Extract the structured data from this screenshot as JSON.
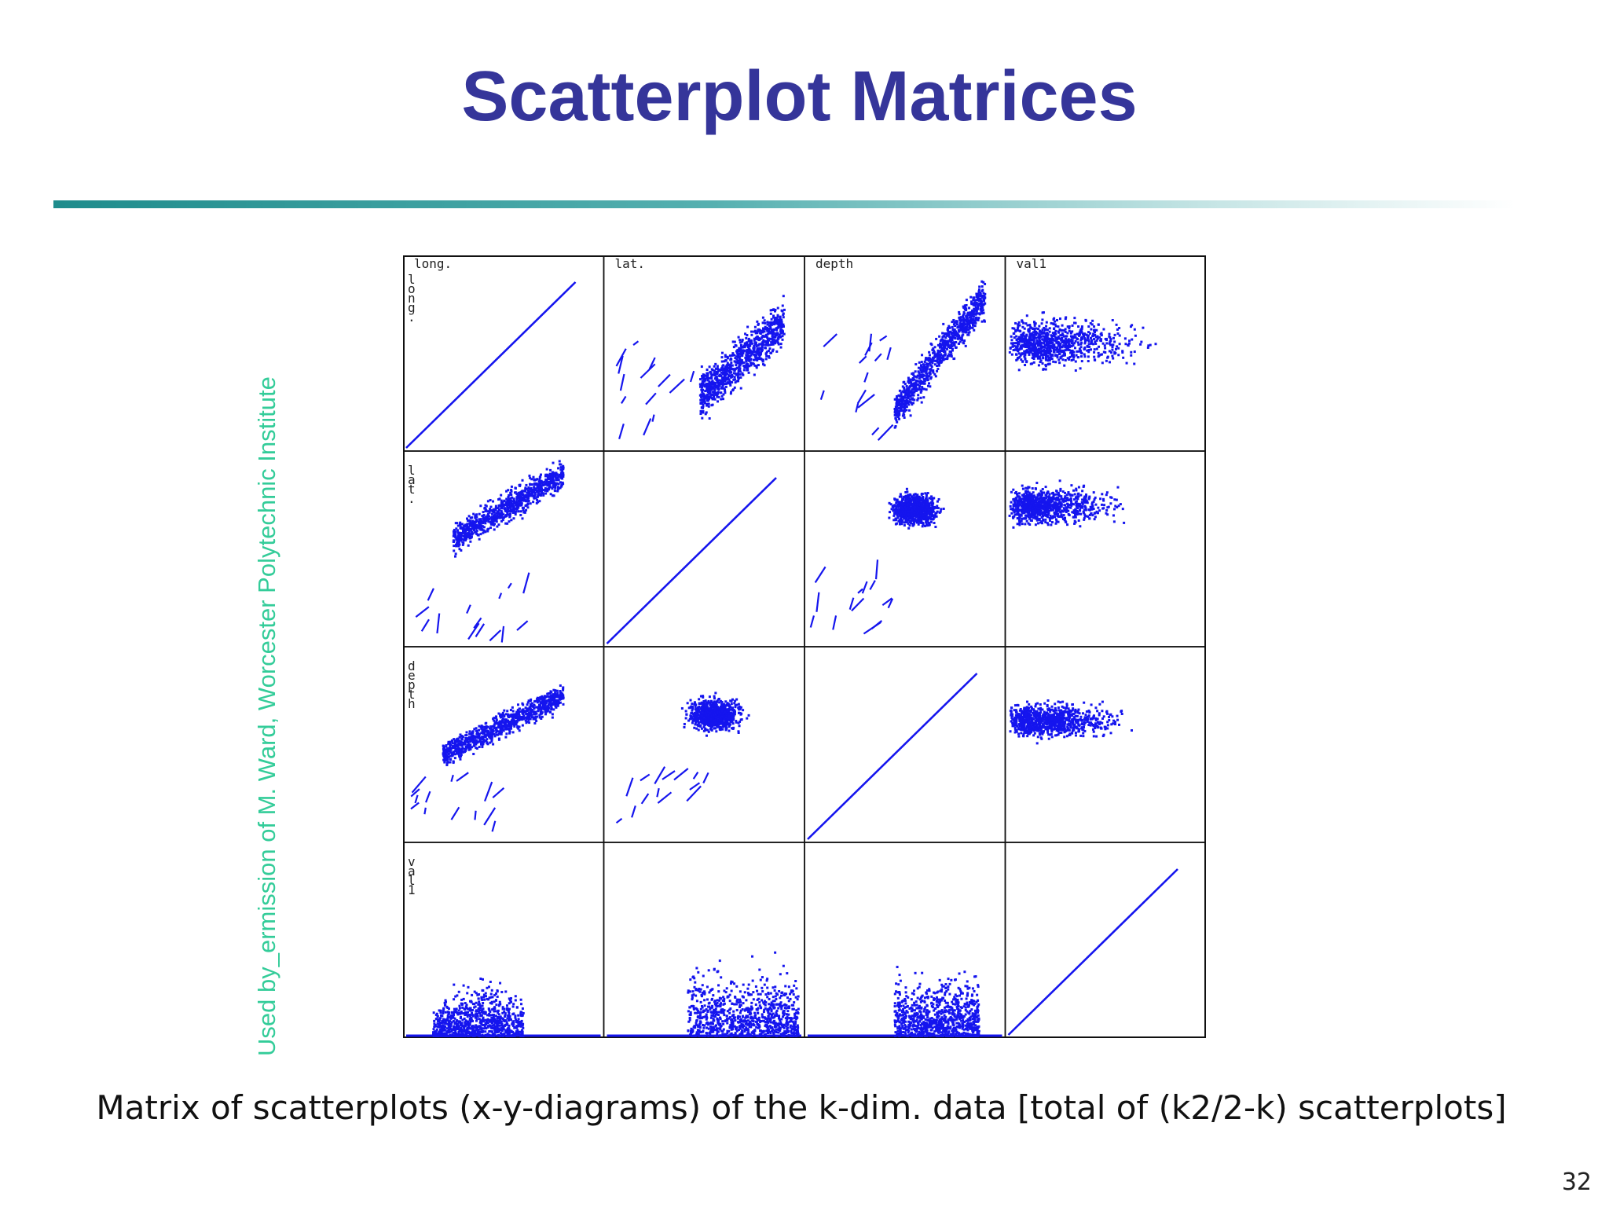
{
  "slide": {
    "title": "Scatterplot Matrices",
    "credit": "Used by_ermission of M. Ward, Worcester Polytechnic Institute",
    "caption": "Matrix of scatterplots (x-y-diagrams) of the k-dim. data [total of (k2/2-k) scatterplots]",
    "page_number": "32"
  },
  "colors": {
    "title": "#35359a",
    "credit": "#33cc99",
    "points": "#1515ee",
    "rule_start": "#1e8c8c"
  },
  "chart_data": {
    "type": "scatter",
    "title": "",
    "variables": [
      "long.",
      "lat.",
      "depth",
      "val1"
    ],
    "row_labels": [
      "long.",
      "lat.",
      "depth",
      "val1"
    ],
    "layout": "4x4 matrix, diagonal shows identity (y = x) lines",
    "grid": false,
    "point_color": "#1515ee"
  }
}
